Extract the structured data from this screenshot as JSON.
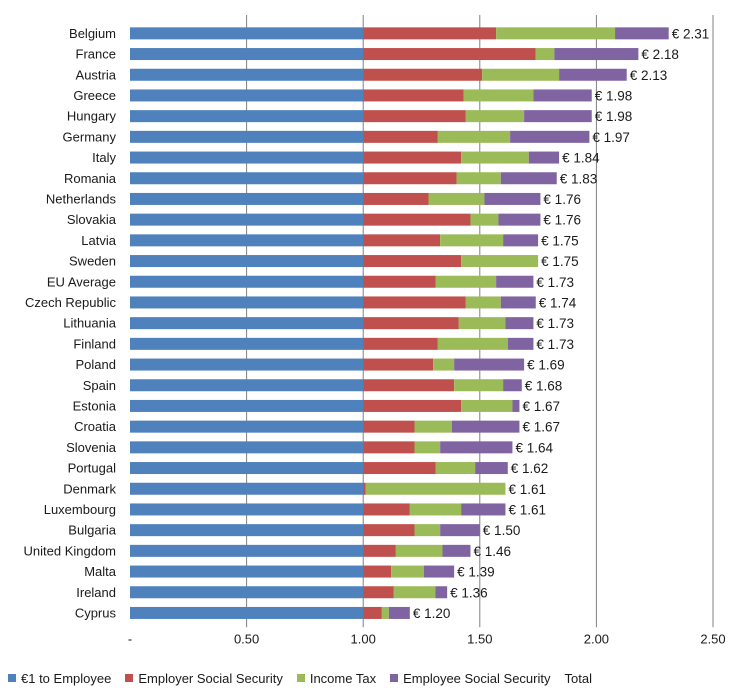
{
  "chart_data": {
    "type": "bar",
    "orientation": "horizontal",
    "stacked": true,
    "categories": [
      "Belgium",
      "France",
      "Austria",
      "Greece",
      "Hungary",
      "Germany",
      "Italy",
      "Romania",
      "Netherlands",
      "Slovakia",
      "Latvia",
      "Sweden",
      "EU Average",
      "Czech Republic",
      "Lithuania",
      "Finland",
      "Poland",
      "Spain",
      "Estonia",
      "Croatia",
      "Slovenia",
      "Portugal",
      "Denmark",
      "Luxembourg",
      "Bulgaria",
      "United Kingdom",
      "Malta",
      "Ireland",
      "Cyprus"
    ],
    "series": [
      {
        "name": "€1 to Employee",
        "color": "#4f81bd",
        "values": [
          1,
          1,
          1,
          1,
          1,
          1,
          1,
          1,
          1,
          1,
          1,
          1,
          1,
          1,
          1,
          1,
          1,
          1,
          1,
          1,
          1,
          1,
          1,
          1,
          1,
          1,
          1,
          1,
          1
        ]
      },
      {
        "name": "Employer Social Security",
        "color": "#c0504d",
        "values": [
          0.57,
          0.74,
          0.51,
          0.43,
          0.44,
          0.32,
          0.42,
          0.4,
          0.28,
          0.46,
          0.33,
          0.42,
          0.31,
          0.44,
          0.41,
          0.32,
          0.3,
          0.39,
          0.42,
          0.22,
          0.22,
          0.31,
          0.01,
          0.2,
          0.22,
          0.14,
          0.12,
          0.13,
          0.08
        ]
      },
      {
        "name": "Income Tax",
        "color": "#9bbb59",
        "values": [
          0.51,
          0.08,
          0.33,
          0.3,
          0.25,
          0.31,
          0.29,
          0.19,
          0.24,
          0.12,
          0.27,
          0.33,
          0.26,
          0.15,
          0.2,
          0.3,
          0.09,
          0.21,
          0.22,
          0.16,
          0.11,
          0.17,
          0.6,
          0.22,
          0.11,
          0.2,
          0.14,
          0.18,
          0.03
        ]
      },
      {
        "name": "Employee Social Security",
        "color": "#8064a2",
        "values": [
          0.23,
          0.36,
          0.29,
          0.25,
          0.29,
          0.34,
          0.13,
          0.24,
          0.24,
          0.18,
          0.15,
          0.0,
          0.16,
          0.15,
          0.12,
          0.11,
          0.3,
          0.08,
          0.03,
          0.29,
          0.31,
          0.14,
          0.0,
          0.19,
          0.17,
          0.12,
          0.13,
          0.05,
          0.09
        ]
      }
    ],
    "total_series_name": "Total",
    "totals": [
      "€ 2.31",
      "€ 2.18",
      "€ 2.13",
      "€ 1.98",
      "€ 1.98",
      "€ 1.97",
      "€ 1.84",
      "€ 1.83",
      "€ 1.76",
      "€ 1.76",
      "€ 1.75",
      "€ 1.75",
      "€ 1.73",
      "€ 1.74",
      "€ 1.73",
      "€ 1.73",
      "€ 1.69",
      "€ 1.68",
      "€ 1.67",
      "€ 1.67",
      "€ 1.64",
      "€ 1.62",
      "€ 1.61",
      "€ 1.61",
      "€ 1.50",
      "€ 1.46",
      "€ 1.39",
      "€ 1.36",
      "€ 1.20"
    ],
    "x_ticks": [
      "-",
      "0.50",
      "1.00",
      "1.50",
      "2.00",
      "2.50"
    ],
    "xlim": [
      0,
      2.5
    ],
    "grid": "vertical",
    "legend_position": "bottom",
    "title": "",
    "xlabel": "",
    "ylabel": ""
  }
}
